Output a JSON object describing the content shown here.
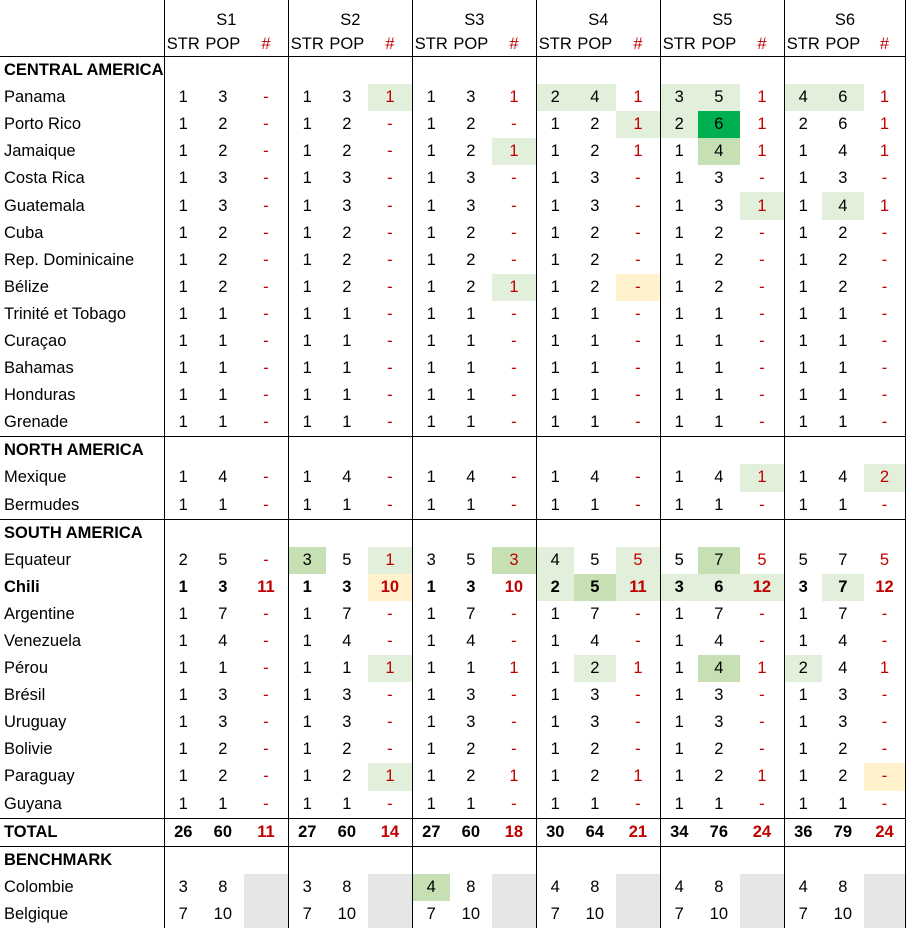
{
  "seasons": [
    "S1",
    "S2",
    "S3",
    "S4",
    "S5",
    "S6"
  ],
  "subheaders": [
    "STR",
    "POP",
    "#"
  ],
  "groups": [
    {
      "title": "CENTRAL AMERICA",
      "rows": [
        {
          "name": "Panama",
          "cells": [
            [
              "1",
              "3",
              "-"
            ],
            [
              "1",
              "3",
              "1"
            ],
            [
              "1",
              "3",
              "1"
            ],
            [
              "2",
              "4",
              "1"
            ],
            [
              "3",
              "5",
              "1"
            ],
            [
              "4",
              "6",
              "1"
            ]
          ],
          "hl": {
            "1.2": "g1",
            "3.0": "g1",
            "3.1": "g1",
            "4.0": "g1",
            "4.1": "g1",
            "5.0": "g1",
            "5.1": "g1"
          }
        },
        {
          "name": "Porto Rico",
          "cells": [
            [
              "1",
              "2",
              "-"
            ],
            [
              "1",
              "2",
              "-"
            ],
            [
              "1",
              "2",
              "-"
            ],
            [
              "1",
              "2",
              "1"
            ],
            [
              "2",
              "6",
              "1"
            ],
            [
              "2",
              "6",
              "1"
            ]
          ],
          "hl": {
            "3.2": "g1",
            "4.0": "g1",
            "4.1": "g3"
          }
        },
        {
          "name": "Jamaique",
          "cells": [
            [
              "1",
              "2",
              "-"
            ],
            [
              "1",
              "2",
              "-"
            ],
            [
              "1",
              "2",
              "1"
            ],
            [
              "1",
              "2",
              "1"
            ],
            [
              "1",
              "4",
              "1"
            ],
            [
              "1",
              "4",
              "1"
            ]
          ],
          "hl": {
            "2.2": "g1",
            "4.1": "g2"
          }
        },
        {
          "name": "Costa Rica",
          "cells": [
            [
              "1",
              "3",
              "-"
            ],
            [
              "1",
              "3",
              "-"
            ],
            [
              "1",
              "3",
              "-"
            ],
            [
              "1",
              "3",
              "-"
            ],
            [
              "1",
              "3",
              "-"
            ],
            [
              "1",
              "3",
              "-"
            ]
          ]
        },
        {
          "name": "Guatemala",
          "cells": [
            [
              "1",
              "3",
              "-"
            ],
            [
              "1",
              "3",
              "-"
            ],
            [
              "1",
              "3",
              "-"
            ],
            [
              "1",
              "3",
              "-"
            ],
            [
              "1",
              "3",
              "1"
            ],
            [
              "1",
              "4",
              "1"
            ]
          ],
          "hl": {
            "4.2": "g1",
            "5.1": "g1"
          }
        },
        {
          "name": "Cuba",
          "cells": [
            [
              "1",
              "2",
              "-"
            ],
            [
              "1",
              "2",
              "-"
            ],
            [
              "1",
              "2",
              "-"
            ],
            [
              "1",
              "2",
              "-"
            ],
            [
              "1",
              "2",
              "-"
            ],
            [
              "1",
              "2",
              "-"
            ]
          ]
        },
        {
          "name": "Rep. Dominicaine",
          "cells": [
            [
              "1",
              "2",
              "-"
            ],
            [
              "1",
              "2",
              "-"
            ],
            [
              "1",
              "2",
              "-"
            ],
            [
              "1",
              "2",
              "-"
            ],
            [
              "1",
              "2",
              "-"
            ],
            [
              "1",
              "2",
              "-"
            ]
          ]
        },
        {
          "name": "Bélize",
          "cells": [
            [
              "1",
              "2",
              "-"
            ],
            [
              "1",
              "2",
              "-"
            ],
            [
              "1",
              "2",
              "1"
            ],
            [
              "1",
              "2",
              "-"
            ],
            [
              "1",
              "2",
              "-"
            ],
            [
              "1",
              "2",
              "-"
            ]
          ],
          "hl": {
            "2.2": "g1",
            "3.2": "y1"
          }
        },
        {
          "name": "Trinité et Tobago",
          "cells": [
            [
              "1",
              "1",
              "-"
            ],
            [
              "1",
              "1",
              "-"
            ],
            [
              "1",
              "1",
              "-"
            ],
            [
              "1",
              "1",
              "-"
            ],
            [
              "1",
              "1",
              "-"
            ],
            [
              "1",
              "1",
              "-"
            ]
          ]
        },
        {
          "name": "Curaçao",
          "cells": [
            [
              "1",
              "1",
              "-"
            ],
            [
              "1",
              "1",
              "-"
            ],
            [
              "1",
              "1",
              "-"
            ],
            [
              "1",
              "1",
              "-"
            ],
            [
              "1",
              "1",
              "-"
            ],
            [
              "1",
              "1",
              "-"
            ]
          ]
        },
        {
          "name": "Bahamas",
          "cells": [
            [
              "1",
              "1",
              "-"
            ],
            [
              "1",
              "1",
              "-"
            ],
            [
              "1",
              "1",
              "-"
            ],
            [
              "1",
              "1",
              "-"
            ],
            [
              "1",
              "1",
              "-"
            ],
            [
              "1",
              "1",
              "-"
            ]
          ]
        },
        {
          "name": "Honduras",
          "cells": [
            [
              "1",
              "1",
              "-"
            ],
            [
              "1",
              "1",
              "-"
            ],
            [
              "1",
              "1",
              "-"
            ],
            [
              "1",
              "1",
              "-"
            ],
            [
              "1",
              "1",
              "-"
            ],
            [
              "1",
              "1",
              "-"
            ]
          ]
        },
        {
          "name": "Grenade",
          "cells": [
            [
              "1",
              "1",
              "-"
            ],
            [
              "1",
              "1",
              "-"
            ],
            [
              "1",
              "1",
              "-"
            ],
            [
              "1",
              "1",
              "-"
            ],
            [
              "1",
              "1",
              "-"
            ],
            [
              "1",
              "1",
              "-"
            ]
          ]
        }
      ]
    },
    {
      "title": "NORTH AMERICA",
      "rows": [
        {
          "name": "Mexique",
          "cells": [
            [
              "1",
              "4",
              "-"
            ],
            [
              "1",
              "4",
              "-"
            ],
            [
              "1",
              "4",
              "-"
            ],
            [
              "1",
              "4",
              "-"
            ],
            [
              "1",
              "4",
              "1"
            ],
            [
              "1",
              "4",
              "2"
            ]
          ],
          "hl": {
            "4.2": "g1",
            "5.2": "g1"
          }
        },
        {
          "name": "Bermudes",
          "cells": [
            [
              "1",
              "1",
              "-"
            ],
            [
              "1",
              "1",
              "-"
            ],
            [
              "1",
              "1",
              "-"
            ],
            [
              "1",
              "1",
              "-"
            ],
            [
              "1",
              "1",
              "-"
            ],
            [
              "1",
              "1",
              "-"
            ]
          ]
        }
      ]
    },
    {
      "title": "SOUTH AMERICA",
      "rows": [
        {
          "name": "Equateur",
          "cells": [
            [
              "2",
              "5",
              "-"
            ],
            [
              "3",
              "5",
              "1"
            ],
            [
              "3",
              "5",
              "3"
            ],
            [
              "4",
              "5",
              "5"
            ],
            [
              "5",
              "7",
              "5"
            ],
            [
              "5",
              "7",
              "5"
            ]
          ],
          "hl": {
            "1.0": "g2",
            "1.2": "g1",
            "2.2": "g2",
            "3.0": "g1",
            "3.2": "g1",
            "4.1": "g2"
          }
        },
        {
          "name": "Chili",
          "bold": true,
          "cells": [
            [
              "1",
              "3",
              "11"
            ],
            [
              "1",
              "3",
              "10"
            ],
            [
              "1",
              "3",
              "10"
            ],
            [
              "2",
              "5",
              "11"
            ],
            [
              "3",
              "6",
              "12"
            ],
            [
              "3",
              "7",
              "12"
            ]
          ],
          "hl": {
            "1.2": "y1",
            "3.0": "g1",
            "3.1": "g2",
            "3.2": "g1",
            "4.0": "g1",
            "4.1": "g1",
            "4.2": "g1",
            "5.1": "g1"
          }
        },
        {
          "name": "Argentine",
          "cells": [
            [
              "1",
              "7",
              "-"
            ],
            [
              "1",
              "7",
              "-"
            ],
            [
              "1",
              "7",
              "-"
            ],
            [
              "1",
              "7",
              "-"
            ],
            [
              "1",
              "7",
              "-"
            ],
            [
              "1",
              "7",
              "-"
            ]
          ]
        },
        {
          "name": "Venezuela",
          "cells": [
            [
              "1",
              "4",
              "-"
            ],
            [
              "1",
              "4",
              "-"
            ],
            [
              "1",
              "4",
              "-"
            ],
            [
              "1",
              "4",
              "-"
            ],
            [
              "1",
              "4",
              "-"
            ],
            [
              "1",
              "4",
              "-"
            ]
          ]
        },
        {
          "name": "Pérou",
          "cells": [
            [
              "1",
              "1",
              "-"
            ],
            [
              "1",
              "1",
              "1"
            ],
            [
              "1",
              "1",
              "1"
            ],
            [
              "1",
              "2",
              "1"
            ],
            [
              "1",
              "4",
              "1"
            ],
            [
              "2",
              "4",
              "1"
            ]
          ],
          "hl": {
            "1.2": "g1",
            "3.1": "g1",
            "4.1": "g2",
            "5.0": "g1"
          }
        },
        {
          "name": "Brésil",
          "cells": [
            [
              "1",
              "3",
              "-"
            ],
            [
              "1",
              "3",
              "-"
            ],
            [
              "1",
              "3",
              "-"
            ],
            [
              "1",
              "3",
              "-"
            ],
            [
              "1",
              "3",
              "-"
            ],
            [
              "1",
              "3",
              "-"
            ]
          ]
        },
        {
          "name": "Uruguay",
          "cells": [
            [
              "1",
              "3",
              "-"
            ],
            [
              "1",
              "3",
              "-"
            ],
            [
              "1",
              "3",
              "-"
            ],
            [
              "1",
              "3",
              "-"
            ],
            [
              "1",
              "3",
              "-"
            ],
            [
              "1",
              "3",
              "-"
            ]
          ]
        },
        {
          "name": "Bolivie",
          "cells": [
            [
              "1",
              "2",
              "-"
            ],
            [
              "1",
              "2",
              "-"
            ],
            [
              "1",
              "2",
              "-"
            ],
            [
              "1",
              "2",
              "-"
            ],
            [
              "1",
              "2",
              "-"
            ],
            [
              "1",
              "2",
              "-"
            ]
          ]
        },
        {
          "name": "Paraguay",
          "cells": [
            [
              "1",
              "2",
              "-"
            ],
            [
              "1",
              "2",
              "1"
            ],
            [
              "1",
              "2",
              "1"
            ],
            [
              "1",
              "2",
              "1"
            ],
            [
              "1",
              "2",
              "1"
            ],
            [
              "1",
              "2",
              "-"
            ]
          ],
          "hl": {
            "1.2": "g1",
            "5.2": "y1"
          }
        },
        {
          "name": "Guyana",
          "cells": [
            [
              "1",
              "1",
              "-"
            ],
            [
              "1",
              "1",
              "-"
            ],
            [
              "1",
              "1",
              "-"
            ],
            [
              "1",
              "1",
              "-"
            ],
            [
              "1",
              "1",
              "-"
            ],
            [
              "1",
              "1",
              "-"
            ]
          ]
        }
      ]
    }
  ],
  "total": {
    "name": "TOTAL",
    "cells": [
      [
        "26",
        "60",
        "11"
      ],
      [
        "27",
        "60",
        "14"
      ],
      [
        "27",
        "60",
        "18"
      ],
      [
        "30",
        "64",
        "21"
      ],
      [
        "34",
        "76",
        "24"
      ],
      [
        "36",
        "79",
        "24"
      ]
    ]
  },
  "benchmark": {
    "title": "BENCHMARK",
    "rows": [
      {
        "name": "Colombie",
        "cells": [
          [
            "3",
            "8",
            ""
          ],
          [
            "3",
            "8",
            ""
          ],
          [
            "4",
            "8",
            ""
          ],
          [
            "4",
            "8",
            ""
          ],
          [
            "4",
            "8",
            ""
          ],
          [
            "4",
            "8",
            ""
          ]
        ],
        "hl": {
          "2.0": "g2"
        }
      },
      {
        "name": "Belgique",
        "cells": [
          [
            "7",
            "10",
            ""
          ],
          [
            "7",
            "10",
            ""
          ],
          [
            "7",
            "10",
            ""
          ],
          [
            "7",
            "10",
            ""
          ],
          [
            "7",
            "10",
            ""
          ],
          [
            "7",
            "10",
            ""
          ]
        ]
      }
    ]
  },
  "colors": {
    "light_green": "#e2efda",
    "mid_green": "#c6e0b4",
    "strong_green": "#00b050",
    "light_yellow": "#fff2cc",
    "gray": "#e7e6e6",
    "red_text": "#c00000"
  }
}
